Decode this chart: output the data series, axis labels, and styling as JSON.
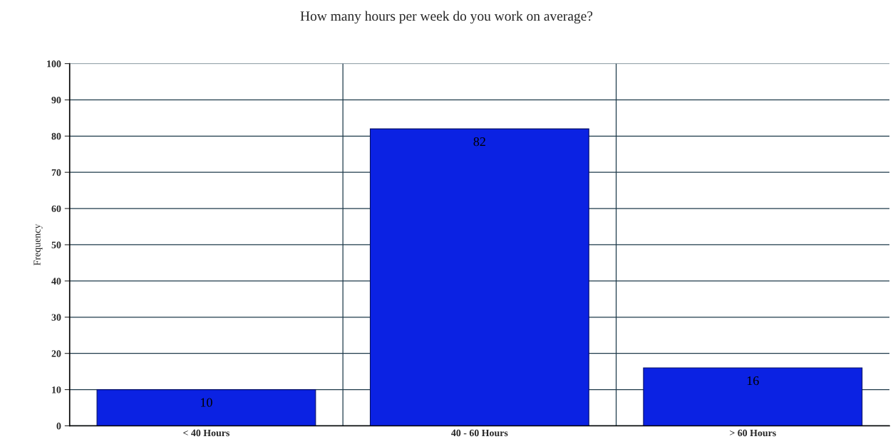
{
  "chart_data": {
    "type": "bar",
    "title": "How many hours per week do you work on average?",
    "ylabel": "Frequency",
    "categories": [
      "< 40 Hours",
      "40 - 60 Hours",
      "> 60 Hours"
    ],
    "values": [
      10,
      82,
      16
    ],
    "color": "#0b22e3",
    "ylim": [
      0,
      100
    ],
    "yticks": [
      0,
      10,
      20,
      30,
      40,
      50,
      60,
      70,
      80,
      90,
      100
    ],
    "grid": true,
    "data_labels": true
  }
}
